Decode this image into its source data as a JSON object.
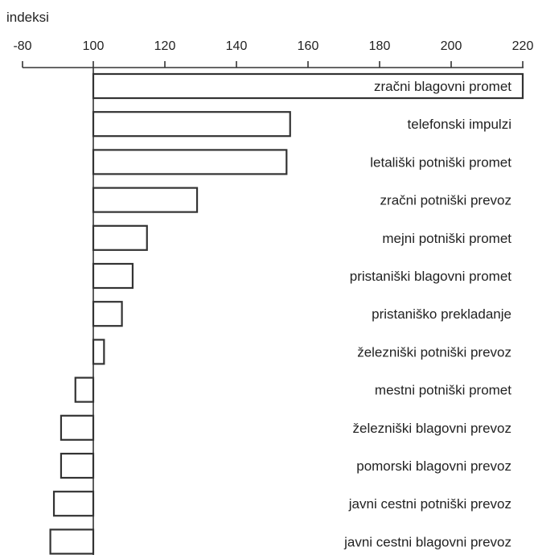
{
  "chart_data": {
    "type": "bar",
    "orientation": "horizontal",
    "xlabel": "indeksi",
    "x_ticks": [
      -80,
      100,
      120,
      140,
      160,
      180,
      200,
      220
    ],
    "baseline": 100,
    "categories": [
      "zračni blagovni promet",
      "telefonski impulzi",
      "letališki potniški promet",
      "zračni potniški prevoz",
      "mejni potniški promet",
      "pristaniški blagovni promet",
      "pristaniško prekladanje",
      "železniški potniški prevoz",
      "mestni potniški promet",
      "železniški blagovni prevoz",
      "pomorski blagovni prevoz",
      "javni cestni potniški prevoz",
      "javni cestni blagovni prevoz"
    ],
    "values": [
      220,
      155,
      154,
      129,
      115,
      111,
      108,
      103,
      95,
      91,
      91,
      89,
      88
    ],
    "grid": false,
    "legend": "none",
    "colors": {
      "bar_fill": "#ffffff",
      "bar_stroke": "#333333",
      "axis": "#333333",
      "text": "#222222"
    }
  }
}
